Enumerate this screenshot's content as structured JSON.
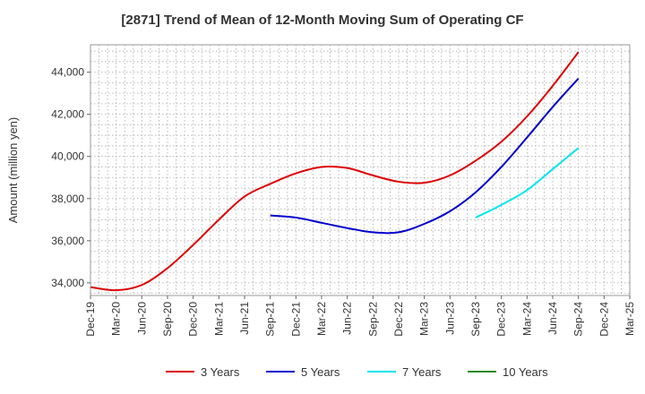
{
  "chart_data": {
    "type": "line",
    "title": "[2871]  Trend of Mean of 12-Month Moving Sum of Operating CF",
    "xlabel": "",
    "ylabel": "Amount (million yen)",
    "categories": [
      "Dec-19",
      "Mar-20",
      "Jun-20",
      "Sep-20",
      "Dec-20",
      "Mar-21",
      "Jun-21",
      "Sep-21",
      "Dec-21",
      "Mar-22",
      "Jun-22",
      "Sep-22",
      "Dec-22",
      "Mar-23",
      "Jun-23",
      "Sep-23",
      "Dec-23",
      "Mar-24",
      "Jun-24",
      "Sep-24",
      "Dec-24",
      "Mar-25"
    ],
    "ylim": [
      33400,
      45300
    ],
    "yticks": [
      34000,
      36000,
      38000,
      40000,
      42000,
      44000
    ],
    "ytick_labels": [
      "34,000",
      "36,000",
      "38,000",
      "40,000",
      "42,000",
      "44,000"
    ],
    "grid": true,
    "legend_position": "bottom",
    "series": [
      {
        "name": "3 Years",
        "color": "#dd0000",
        "values": [
          33800,
          33650,
          33900,
          34700,
          35800,
          37000,
          38100,
          38700,
          39200,
          39500,
          39450,
          39100,
          38800,
          38750,
          39100,
          39800,
          40700,
          41900,
          43350,
          44950,
          null,
          null
        ]
      },
      {
        "name": "5 Years",
        "color": "#0000cc",
        "values": [
          null,
          null,
          null,
          null,
          null,
          null,
          null,
          37200,
          37100,
          36850,
          36600,
          36400,
          36400,
          36800,
          37400,
          38300,
          39500,
          40900,
          42350,
          43700,
          null,
          null
        ]
      },
      {
        "name": "7 Years",
        "color": "#00e5ee",
        "values": [
          null,
          null,
          null,
          null,
          null,
          null,
          null,
          null,
          null,
          null,
          null,
          null,
          null,
          null,
          null,
          37100,
          37700,
          38400,
          39400,
          40400,
          null,
          null
        ]
      },
      {
        "name": "10 Years",
        "color": "#228b22",
        "values": [
          null,
          null,
          null,
          null,
          null,
          null,
          null,
          null,
          null,
          null,
          null,
          null,
          null,
          null,
          null,
          null,
          null,
          null,
          null,
          null,
          null,
          null
        ]
      }
    ]
  }
}
